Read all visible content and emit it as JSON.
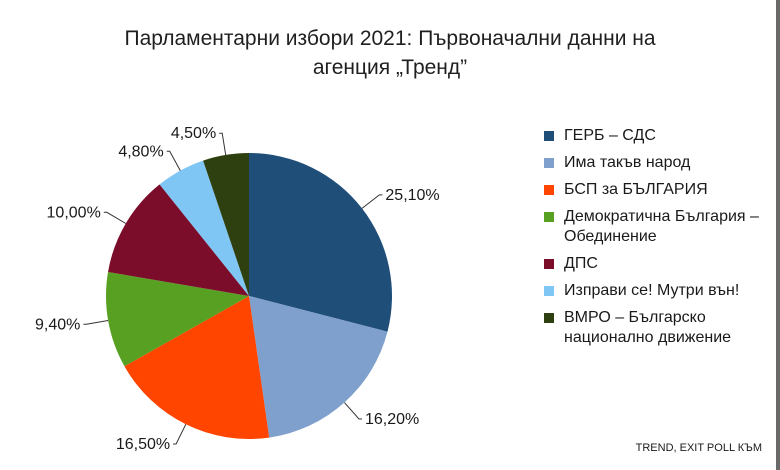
{
  "title_line1": "Парламентарни избори 2021: Първоначални данни на",
  "title_line2": "агенция „Тренд”",
  "source": "TREND, EXIT POLL КЪМ",
  "chart_data": {
    "type": "pie",
    "title": "Парламентарни избори 2021: Първоначални данни на агенция „Тренд”",
    "legend_position": "right",
    "start_angle_deg": 0,
    "direction": "clockwise",
    "series": [
      {
        "name": "ГЕРБ – СДС",
        "value": 25.1,
        "label": "25,10%",
        "color": "#1f4e79"
      },
      {
        "name": "Има такъв народ",
        "value": 16.2,
        "label": "16,20%",
        "color": "#7f9fcc"
      },
      {
        "name": "БСП за БЪЛГАРИЯ",
        "value": 16.5,
        "label": "16,50%",
        "color": "#ff4500"
      },
      {
        "name": "Демократична България – Обединение",
        "value": 9.4,
        "label": "9,40%",
        "color": "#58a021"
      },
      {
        "name": "ДПС",
        "value": 10.0,
        "label": "10,00%",
        "color": "#7b0d2a"
      },
      {
        "name": "Изправи се! Мутри вън!",
        "value": 4.8,
        "label": "4,80%",
        "color": "#7fc6f5"
      },
      {
        "name": "ВМРО – Българско национално движение",
        "value": 4.5,
        "label": "4,50%",
        "color": "#2f4010"
      }
    ]
  },
  "legend": [
    {
      "label": "ГЕРБ – СДС",
      "color": "#1f4e79"
    },
    {
      "label": "Има такъв народ",
      "color": "#7f9fcc"
    },
    {
      "label": "БСП за БЪЛГАРИЯ",
      "color": "#ff4500"
    },
    {
      "label": "Демократична България – Обединение",
      "color": "#58a021"
    },
    {
      "label": "ДПС",
      "color": "#7b0d2a"
    },
    {
      "label": "Изправи се! Мутри вън!",
      "color": "#7fc6f5"
    },
    {
      "label": "ВМРО – Българско национално движение",
      "color": "#2f4010"
    }
  ]
}
